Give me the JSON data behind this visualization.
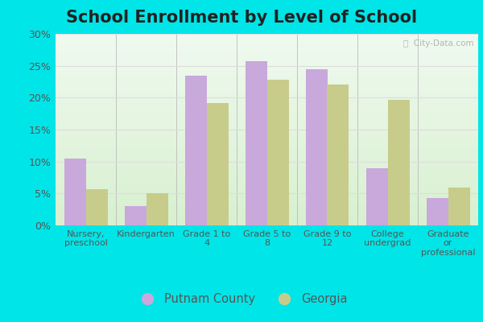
{
  "title": "School Enrollment by Level of School",
  "categories": [
    "Nursery,\npreschool",
    "Kindergarten",
    "Grade 1 to\n4",
    "Grade 5 to\n8",
    "Grade 9 to\n12",
    "College\nundergrad",
    "Graduate\nor\nprofessional"
  ],
  "putnam_values": [
    10.5,
    3.0,
    23.5,
    25.7,
    24.4,
    9.0,
    4.3
  ],
  "georgia_values": [
    5.7,
    5.1,
    19.2,
    22.8,
    22.1,
    19.7,
    5.9
  ],
  "putnam_color": "#c9a8dc",
  "georgia_color": "#c8cc8a",
  "ylim": [
    0,
    30
  ],
  "yticks": [
    0,
    5,
    10,
    15,
    20,
    25,
    30
  ],
  "ytick_labels": [
    "0%",
    "5%",
    "10%",
    "15%",
    "20%",
    "25%",
    "30%"
  ],
  "bg_top": "#f0faf0",
  "bg_bottom": "#d8f0d0",
  "outer_background": "#00e5e8",
  "grid_color": "#dddddd",
  "legend_putnam": "Putnam County",
  "legend_georgia": "Georgia",
  "bar_width": 0.36,
  "title_fontsize": 15,
  "watermark_text": "ⓘ  City-Data.com"
}
